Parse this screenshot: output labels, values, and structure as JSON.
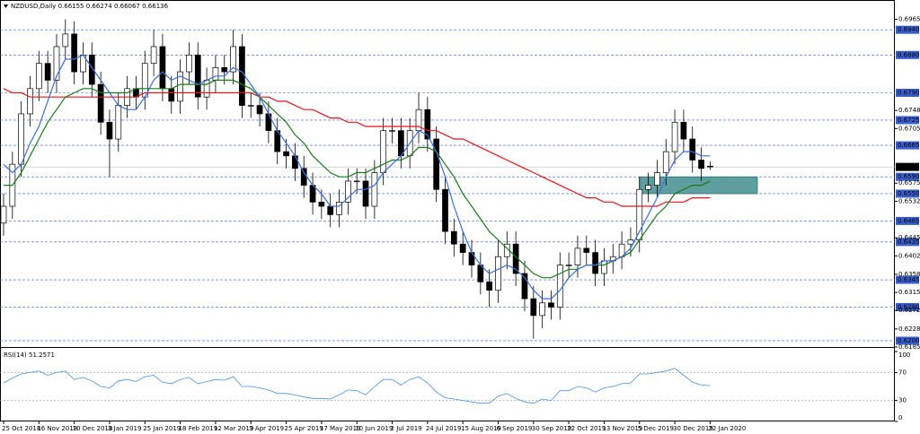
{
  "chart_data": {
    "type": "candlestick",
    "title": "NZDUSD,Daily",
    "header_values": [
      0.66155,
      0.66274,
      0.66067,
      0.66136
    ],
    "categories": [
      "25 Oct 2018",
      null,
      null,
      null,
      "16 Nov 2018",
      null,
      null,
      null,
      "10 Dec 2018",
      null,
      null,
      null,
      "3 Jan 2019",
      null,
      null,
      null,
      "25 Jan 2019",
      null,
      null,
      null,
      "18 Feb 2019",
      null,
      null,
      null,
      "12 Mar 2019",
      null,
      null,
      null,
      "3 Apr 2019",
      null,
      null,
      null,
      "25 Apr 2019",
      null,
      null,
      null,
      "17 May 2019",
      null,
      null,
      null,
      "10 Jun 2019",
      null,
      null,
      null,
      "2 Jul 2019",
      null,
      null,
      null,
      "24 Jul 2019",
      null,
      null,
      null,
      "15 Aug 2019",
      null,
      null,
      null,
      "6 Sep 2019",
      null,
      null,
      null,
      "30 Sep 2019",
      null,
      null,
      null,
      "22 Oct 2019",
      null,
      null,
      null,
      "13 Nov 2019",
      null,
      null,
      null,
      "5 Dec 2019",
      null,
      null,
      null,
      "30 Dec 2019",
      null,
      null,
      null,
      "22 Jan 2020"
    ],
    "open": [
      0.648,
      0.652,
      0.662,
      0.674,
      0.68,
      0.686,
      0.682,
      0.69,
      0.693,
      0.684,
      0.688,
      0.681,
      0.672,
      0.668,
      0.676,
      0.68,
      0.678,
      0.686,
      0.69,
      0.68,
      0.677,
      0.684,
      0.688,
      0.678,
      0.682,
      0.685,
      0.684,
      0.69,
      0.676,
      0.676,
      0.674,
      0.67,
      0.665,
      0.664,
      0.661,
      0.657,
      0.653,
      0.652,
      0.65,
      0.653,
      0.658,
      0.658,
      0.652,
      0.66,
      0.67,
      0.67,
      0.664,
      0.67,
      0.675,
      0.668,
      0.656,
      0.646,
      0.643,
      0.641,
      0.638,
      0.634,
      0.632,
      0.64,
      0.643,
      0.636,
      0.63,
      0.626,
      0.629,
      0.628,
      0.638,
      0.638,
      0.642,
      0.641,
      0.636,
      0.639,
      0.64,
      0.643,
      0.644,
      0.656,
      0.657,
      0.66,
      0.665,
      0.672,
      0.668,
      0.663,
      0.66155
    ],
    "high": [
      0.655,
      0.665,
      0.677,
      0.683,
      0.689,
      0.689,
      0.693,
      0.6965,
      0.696,
      0.691,
      0.691,
      0.684,
      0.675,
      0.679,
      0.683,
      0.683,
      0.689,
      0.694,
      0.693,
      0.683,
      0.687,
      0.691,
      0.691,
      0.685,
      0.688,
      0.688,
      0.694,
      0.693,
      0.679,
      0.679,
      0.677,
      0.673,
      0.668,
      0.667,
      0.664,
      0.66,
      0.656,
      0.655,
      0.656,
      0.661,
      0.661,
      0.661,
      0.663,
      0.673,
      0.673,
      0.673,
      0.673,
      0.679,
      0.678,
      0.671,
      0.659,
      0.649,
      0.646,
      0.644,
      0.641,
      0.637,
      0.644,
      0.646,
      0.646,
      0.639,
      0.633,
      0.632,
      0.632,
      0.641,
      0.641,
      0.645,
      0.645,
      0.644,
      0.642,
      0.643,
      0.646,
      0.647,
      0.659,
      0.66,
      0.663,
      0.668,
      0.675,
      0.675,
      0.671,
      0.666,
      0.66274
    ],
    "low": [
      0.645,
      0.649,
      0.659,
      0.671,
      0.677,
      0.679,
      0.679,
      0.687,
      0.681,
      0.681,
      0.678,
      0.669,
      0.659,
      0.665,
      0.673,
      0.675,
      0.675,
      0.683,
      0.677,
      0.674,
      0.674,
      0.681,
      0.675,
      0.675,
      0.679,
      0.681,
      0.681,
      0.673,
      0.673,
      0.671,
      0.667,
      0.662,
      0.661,
      0.658,
      0.654,
      0.65,
      0.649,
      0.647,
      0.647,
      0.65,
      0.655,
      0.649,
      0.649,
      0.657,
      0.667,
      0.661,
      0.661,
      0.667,
      0.665,
      0.653,
      0.643,
      0.64,
      0.638,
      0.635,
      0.631,
      0.628,
      0.629,
      0.637,
      0.633,
      0.627,
      0.6205,
      0.623,
      0.625,
      0.625,
      0.635,
      0.635,
      0.638,
      0.633,
      0.633,
      0.636,
      0.637,
      0.64,
      0.641,
      0.653,
      0.654,
      0.657,
      0.662,
      0.665,
      0.66,
      0.658,
      0.66067
    ],
    "close": [
      0.652,
      0.662,
      0.674,
      0.68,
      0.686,
      0.682,
      0.69,
      0.693,
      0.684,
      0.688,
      0.681,
      0.672,
      0.668,
      0.676,
      0.68,
      0.678,
      0.686,
      0.69,
      0.68,
      0.677,
      0.684,
      0.688,
      0.678,
      0.682,
      0.685,
      0.684,
      0.69,
      0.676,
      0.676,
      0.674,
      0.67,
      0.665,
      0.664,
      0.661,
      0.657,
      0.653,
      0.652,
      0.65,
      0.653,
      0.658,
      0.658,
      0.652,
      0.66,
      0.67,
      0.67,
      0.664,
      0.67,
      0.675,
      0.668,
      0.656,
      0.646,
      0.643,
      0.641,
      0.638,
      0.634,
      0.632,
      0.64,
      0.643,
      0.636,
      0.63,
      0.626,
      0.629,
      0.628,
      0.638,
      0.638,
      0.642,
      0.641,
      0.636,
      0.639,
      0.64,
      0.643,
      0.644,
      0.656,
      0.657,
      0.66,
      0.665,
      0.672,
      0.668,
      0.663,
      0.661,
      0.66136
    ],
    "up_color": "#ffffff",
    "down_color": "#000000",
    "series": [
      {
        "color": "#e8141c",
        "values": [
          0.68,
          0.679,
          0.679,
          0.678,
          0.678,
          0.678,
          0.678,
          0.678,
          0.678,
          0.678,
          0.678,
          0.678,
          0.678,
          0.678,
          0.678,
          0.678,
          0.679,
          0.679,
          0.679,
          0.679,
          0.679,
          0.679,
          0.679,
          0.679,
          0.679,
          0.679,
          0.679,
          0.679,
          0.679,
          0.678,
          0.678,
          0.677,
          0.677,
          0.676,
          0.675,
          0.675,
          0.674,
          0.673,
          0.673,
          0.672,
          0.672,
          0.671,
          0.671,
          0.671,
          0.671,
          0.671,
          0.671,
          0.671,
          0.67,
          0.67,
          0.669,
          0.668,
          0.668,
          0.667,
          0.666,
          0.665,
          0.664,
          0.663,
          0.662,
          0.661,
          0.66,
          0.659,
          0.658,
          0.657,
          0.656,
          0.655,
          0.654,
          0.654,
          0.653,
          0.653,
          0.652,
          0.652,
          0.652,
          0.652,
          0.652,
          0.653,
          0.653,
          0.653,
          0.654,
          0.654,
          0.654
        ]
      },
      {
        "color": "#1a7a1a",
        "values": [
          0.657,
          0.657,
          0.66,
          0.664,
          0.668,
          0.672,
          0.675,
          0.678,
          0.679,
          0.68,
          0.68,
          0.679,
          0.679,
          0.679,
          0.679,
          0.68,
          0.68,
          0.68,
          0.68,
          0.68,
          0.681,
          0.681,
          0.681,
          0.681,
          0.682,
          0.682,
          0.682,
          0.681,
          0.68,
          0.678,
          0.676,
          0.674,
          0.672,
          0.669,
          0.667,
          0.664,
          0.662,
          0.66,
          0.659,
          0.659,
          0.66,
          0.66,
          0.661,
          0.662,
          0.663,
          0.663,
          0.664,
          0.666,
          0.666,
          0.665,
          0.662,
          0.659,
          0.655,
          0.652,
          0.649,
          0.646,
          0.644,
          0.642,
          0.64,
          0.638,
          0.636,
          0.635,
          0.635,
          0.636,
          0.637,
          0.637,
          0.638,
          0.638,
          0.638,
          0.639,
          0.64,
          0.641,
          0.644,
          0.647,
          0.65,
          0.652,
          0.655,
          0.656,
          0.657,
          0.657,
          0.658
        ]
      },
      {
        "color": "#3a6fd8",
        "values": [
          0.662,
          0.66,
          0.662,
          0.667,
          0.671,
          0.677,
          0.683,
          0.687,
          0.687,
          0.688,
          0.685,
          0.682,
          0.679,
          0.676,
          0.675,
          0.675,
          0.678,
          0.682,
          0.684,
          0.682,
          0.683,
          0.682,
          0.681,
          0.682,
          0.683,
          0.683,
          0.685,
          0.684,
          0.681,
          0.678,
          0.674,
          0.67,
          0.667,
          0.664,
          0.66,
          0.657,
          0.655,
          0.652,
          0.652,
          0.654,
          0.656,
          0.656,
          0.657,
          0.66,
          0.662,
          0.664,
          0.667,
          0.67,
          0.669,
          0.665,
          0.659,
          0.652,
          0.646,
          0.641,
          0.638,
          0.636,
          0.637,
          0.638,
          0.637,
          0.635,
          0.632,
          0.63,
          0.63,
          0.632,
          0.635,
          0.637,
          0.638,
          0.638,
          0.639,
          0.639,
          0.64,
          0.642,
          0.646,
          0.65,
          0.654,
          0.659,
          0.663,
          0.665,
          0.665,
          0.664,
          0.664
        ]
      }
    ],
    "ylim": [
      0.6185,
      0.6981
    ],
    "yticks": [
      {
        "value": 0.6965,
        "label": "0.69650"
      },
      {
        "value": 0.6748,
        "label": "0.67480"
      },
      {
        "value": 0.6705,
        "label": "0.67050"
      },
      {
        "value": 0.6575,
        "label": "0.65750"
      },
      {
        "value": 0.6532,
        "label": "0.65320"
      },
      {
        "value": 0.6445,
        "label": "0.64450"
      },
      {
        "value": 0.6402,
        "label": "0.64020"
      },
      {
        "value": 0.6358,
        "label": "0.63580"
      },
      {
        "value": 0.6315,
        "label": "0.63150"
      },
      {
        "value": 0.6272,
        "label": "0.62720"
      },
      {
        "value": 0.6228,
        "label": "0.62280"
      },
      {
        "value": 0.6185,
        "label": "0.61850"
      }
    ],
    "levels": [
      {
        "value": 0.694,
        "label": "0.69400"
      },
      {
        "value": 0.688,
        "label": "0.68800"
      },
      {
        "value": 0.679,
        "label": "0.67900"
      },
      {
        "value": 0.6725,
        "label": "0.67250"
      },
      {
        "value": 0.6665,
        "label": "0.66650"
      },
      {
        "value": 0.659,
        "label": "0.65900"
      },
      {
        "value": 0.655,
        "label": "0.65500"
      },
      {
        "value": 0.6485,
        "label": "0.64850"
      },
      {
        "value": 0.6435,
        "label": "0.64350"
      },
      {
        "value": 0.6345,
        "label": "0.63450"
      },
      {
        "value": 0.628,
        "label": "0.62800"
      },
      {
        "value": 0.62,
        "label": "0.62000"
      }
    ],
    "level_color": "#3a5fcd",
    "price_marker": {
      "value": 0.66136,
      "label": "0.66136"
    },
    "zone": {
      "from": 0.655,
      "to": 0.659,
      "color": "#5f9e9e"
    },
    "rsi": {
      "name": "RSI(14)",
      "value": 51.2571,
      "color": "#4a90e2",
      "values": [
        55,
        62,
        68,
        70,
        72,
        66,
        70,
        72,
        60,
        63,
        58,
        50,
        48,
        58,
        60,
        57,
        64,
        66,
        56,
        54,
        60,
        63,
        54,
        57,
        60,
        59,
        64,
        50,
        50,
        48,
        45,
        40,
        40,
        38,
        35,
        33,
        33,
        32,
        38,
        45,
        44,
        38,
        50,
        60,
        60,
        52,
        60,
        64,
        55,
        42,
        34,
        32,
        30,
        28,
        26,
        26,
        36,
        40,
        33,
        28,
        26,
        32,
        30,
        44,
        44,
        50,
        48,
        42,
        48,
        50,
        54,
        55,
        68,
        68,
        70,
        72,
        76,
        66,
        56,
        52,
        51.2571
      ],
      "ylim": [
        0,
        100
      ],
      "yticks": [
        100,
        70,
        30,
        0
      ],
      "levels": [
        70,
        30
      ]
    }
  }
}
